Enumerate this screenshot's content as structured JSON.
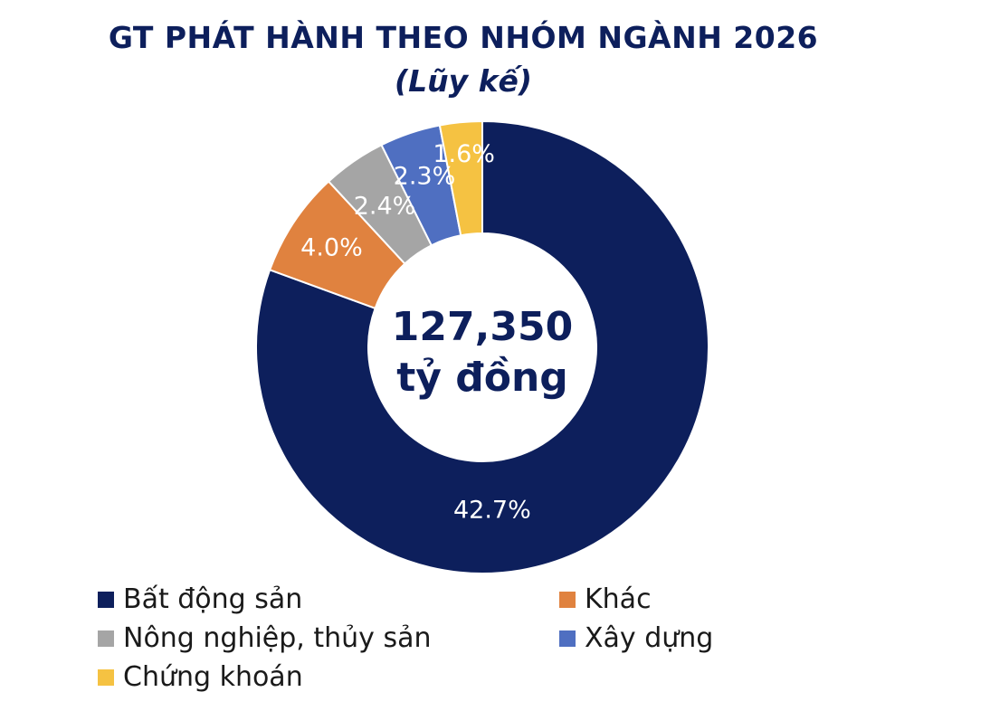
{
  "chart_data": {
    "type": "pie",
    "variant": "donut",
    "title": "GT PHÁT HÀNH THEO NHÓM NGÀNH 2026",
    "subtitle": "(Lũy kế)",
    "center_label": {
      "value": "127,350",
      "unit": "tỷ đồng"
    },
    "categories": [
      "Bất động sản",
      "Khác",
      "Nông nghiệp, thủy sản",
      "Xây dựng",
      "Chứng khoán"
    ],
    "values": [
      42.7,
      4.0,
      2.4,
      2.3,
      1.6
    ],
    "value_labels": [
      "42.7%",
      "4.0%",
      "2.4%",
      "2.3%",
      "1.6%"
    ],
    "colors": [
      "#0d1f5c",
      "#e0823f",
      "#a5a5a5",
      "#4f6fc1",
      "#f5c242"
    ],
    "legend": "bottom"
  }
}
